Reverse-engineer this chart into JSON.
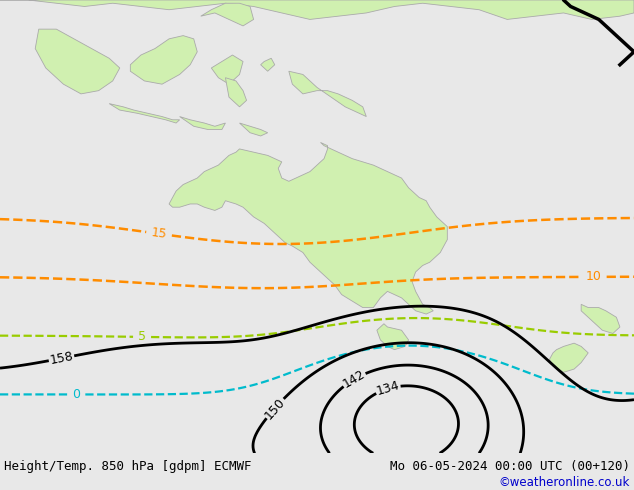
{
  "title_left": "Height/Temp. 850 hPa [gdpm] ECMWF",
  "title_right": "Mo 06-05-2024 00:00 UTC (00+120)",
  "copyright": "©weatheronline.co.uk",
  "bg_ocean": "#e8e8e8",
  "land_color": "#d0f0b0",
  "coast_color": "#aaaaaa",
  "footer_bg": "#cccccc",
  "fig_width": 6.34,
  "fig_height": 4.9,
  "dpi": 100,
  "text_color": "#000000",
  "copyright_color": "#0000cc"
}
